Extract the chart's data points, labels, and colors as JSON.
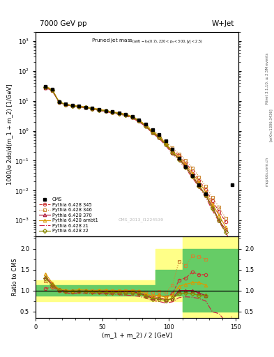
{
  "title_left": "7000 GeV pp",
  "title_right": "W+Jet",
  "xlabel": "(m_1 + m_2) / 2 [GeV]",
  "ylabel_main": "1000/σ 2dσ/d(m_1 + m_2) [1/GeV]",
  "ylabel_ratio": "Ratio to CMS",
  "watermark": "CMS_2013_I1224539",
  "rivet_label": "Rivet 3.1.10, ≥ 2.5M events",
  "arxiv_label": "[arXiv:1306.3436]",
  "mcplots_label": "mcplots.cern.ch",
  "x_data": [
    7.5,
    12.5,
    17.5,
    22.5,
    27.5,
    32.5,
    37.5,
    42.5,
    47.5,
    52.5,
    57.5,
    62.5,
    67.5,
    72.5,
    77.5,
    82.5,
    87.5,
    92.5,
    97.5,
    102.5,
    107.5,
    112.5,
    117.5,
    122.5,
    127.5,
    132.5,
    137.5,
    142.5,
    147.5
  ],
  "cms_y": [
    30.0,
    25.0,
    9.5,
    7.8,
    7.2,
    6.7,
    6.2,
    5.7,
    5.2,
    4.7,
    4.3,
    4.0,
    3.6,
    3.0,
    2.3,
    1.7,
    1.1,
    0.75,
    0.45,
    0.24,
    0.12,
    0.065,
    0.032,
    0.016,
    0.008,
    null,
    null,
    null,
    0.016
  ],
  "py345_y": [
    27.0,
    22.0,
    9.0,
    7.5,
    6.9,
    6.5,
    6.0,
    5.5,
    5.0,
    4.6,
    4.1,
    3.8,
    3.4,
    2.85,
    2.15,
    1.5,
    0.93,
    0.66,
    0.38,
    0.22,
    0.15,
    0.085,
    0.046,
    0.022,
    0.011,
    0.0045,
    0.002,
    0.0009,
    null
  ],
  "py346_y": [
    28.5,
    22.5,
    9.3,
    7.7,
    7.1,
    6.7,
    6.2,
    5.7,
    5.2,
    4.7,
    4.3,
    4.0,
    3.6,
    3.0,
    2.25,
    1.62,
    1.04,
    0.72,
    0.43,
    0.27,
    0.17,
    0.105,
    0.058,
    0.029,
    0.014,
    0.006,
    0.0028,
    0.0012,
    null
  ],
  "py370_y": [
    28.0,
    23.0,
    9.2,
    7.6,
    7.0,
    6.6,
    6.1,
    5.6,
    5.1,
    4.6,
    4.2,
    3.9,
    3.5,
    2.9,
    2.15,
    1.48,
    0.9,
    0.62,
    0.35,
    0.19,
    0.12,
    0.065,
    0.032,
    0.015,
    0.007,
    0.003,
    0.001,
    0.0005,
    null
  ],
  "pyambt1_y": [
    31.0,
    24.0,
    9.5,
    7.8,
    7.2,
    6.8,
    6.3,
    5.8,
    5.3,
    4.8,
    4.3,
    4.0,
    3.6,
    3.0,
    2.28,
    1.55,
    0.96,
    0.66,
    0.38,
    0.21,
    0.13,
    0.075,
    0.038,
    0.019,
    0.009,
    0.0035,
    0.0015,
    0.0006,
    null
  ],
  "pyz1_y": [
    27.5,
    22.0,
    9.0,
    7.3,
    6.7,
    6.3,
    5.8,
    5.3,
    4.8,
    4.4,
    3.9,
    3.6,
    3.2,
    2.66,
    2.0,
    1.38,
    0.84,
    0.56,
    0.32,
    0.17,
    0.1,
    0.055,
    0.027,
    0.013,
    0.006,
    0.0022,
    0.0009,
    0.0004,
    0.00015
  ],
  "pyz2_y": [
    28.5,
    22.8,
    9.3,
    7.5,
    6.9,
    6.5,
    6.0,
    5.5,
    5.0,
    4.55,
    4.1,
    3.8,
    3.4,
    2.82,
    2.15,
    1.45,
    0.88,
    0.6,
    0.35,
    0.19,
    0.11,
    0.061,
    0.03,
    0.014,
    0.007,
    0.0025,
    0.001,
    0.0004,
    null
  ],
  "ratio_py345": [
    1.05,
    1.08,
    1.0,
    0.97,
    0.96,
    0.97,
    0.97,
    0.97,
    0.96,
    0.96,
    0.95,
    0.95,
    0.94,
    0.94,
    0.93,
    0.9,
    0.85,
    0.88,
    0.85,
    0.92,
    1.25,
    1.3,
    1.44,
    1.38,
    1.38,
    null,
    null,
    null,
    null
  ],
  "ratio_py346": [
    1.22,
    1.1,
    1.02,
    1.0,
    0.99,
    1.0,
    1.0,
    1.0,
    0.99,
    1.0,
    1.0,
    0.99,
    1.0,
    1.0,
    0.98,
    0.96,
    0.94,
    0.97,
    0.96,
    1.12,
    1.7,
    1.6,
    1.82,
    1.81,
    1.75,
    null,
    null,
    null,
    null
  ],
  "ratio_py370": [
    1.33,
    1.15,
    1.02,
    0.99,
    0.97,
    0.99,
    0.98,
    0.98,
    0.97,
    0.97,
    0.97,
    0.97,
    0.97,
    0.97,
    0.94,
    0.88,
    0.82,
    0.83,
    0.78,
    0.8,
    1.0,
    1.0,
    1.0,
    0.94,
    0.88,
    null,
    null,
    null,
    null
  ],
  "ratio_pyambt1": [
    1.4,
    1.18,
    1.03,
    1.01,
    1.0,
    1.02,
    1.01,
    1.0,
    1.01,
    1.01,
    1.0,
    1.0,
    1.0,
    1.0,
    0.99,
    0.92,
    0.87,
    0.89,
    0.84,
    0.89,
    1.1,
    1.15,
    1.19,
    1.19,
    1.13,
    null,
    null,
    null,
    null
  ],
  "ratio_pyz1": [
    1.32,
    1.1,
    0.98,
    0.94,
    0.93,
    0.94,
    0.94,
    0.93,
    0.92,
    0.92,
    0.91,
    0.9,
    0.89,
    0.88,
    0.86,
    0.82,
    0.76,
    0.74,
    0.7,
    0.73,
    0.83,
    0.85,
    0.84,
    0.81,
    0.75,
    0.49,
    0.45,
    0.25,
    0.38
  ],
  "ratio_pyz2": [
    1.3,
    1.12,
    1.01,
    0.97,
    0.97,
    0.97,
    0.97,
    0.96,
    0.96,
    0.95,
    0.95,
    0.95,
    0.94,
    0.94,
    0.93,
    0.86,
    0.8,
    0.8,
    0.76,
    0.81,
    0.92,
    0.94,
    0.93,
    0.88,
    0.88,
    null,
    null,
    null,
    null
  ],
  "color_cms": "#000000",
  "color_py345": "#cc3333",
  "color_py346": "#cc8833",
  "color_py370": "#aa1133",
  "color_pyambt1": "#dd9900",
  "color_pyz1": "#cc2244",
  "color_pyz2": "#888800",
  "ylim_main": [
    0.0003,
    2000
  ],
  "ylim_ratio": [
    0.35,
    2.3
  ],
  "xlim": [
    0,
    152
  ]
}
